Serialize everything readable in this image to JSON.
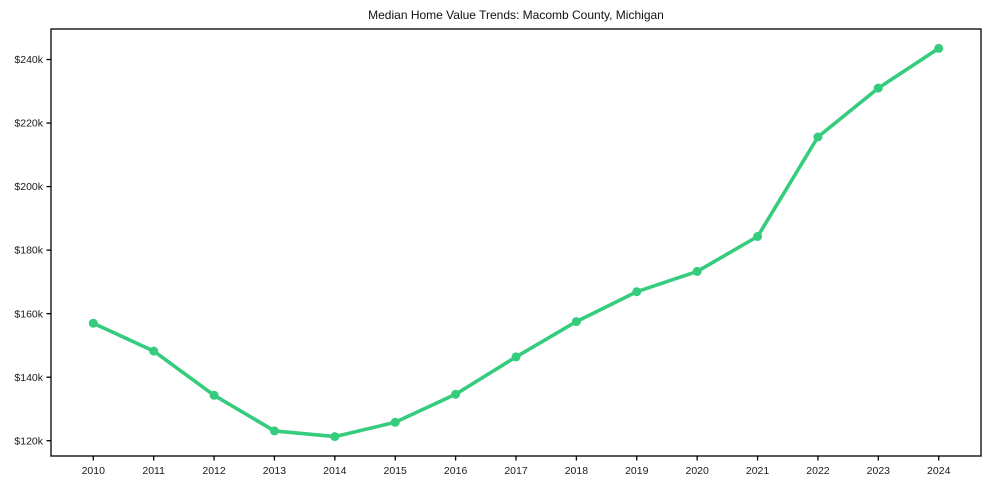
{
  "page": {
    "background_color": "#ffffff"
  },
  "chart_data": {
    "type": "line",
    "title": "Median Home Value Trends: Macomb County, Michigan",
    "xlabel": "",
    "ylabel": "",
    "x": [
      2010,
      2011,
      2012,
      2013,
      2014,
      2015,
      2016,
      2017,
      2018,
      2019,
      2020,
      2021,
      2022,
      2023,
      2024
    ],
    "series": [
      {
        "name": "Median Home Value",
        "color": "#35cd7d",
        "marker": "circle",
        "values": [
          157000,
          148200,
          134300,
          123100,
          121300,
          125800,
          134600,
          146400,
          157500,
          166900,
          173300,
          184300,
          215600,
          231000,
          243500
        ]
      }
    ],
    "xticks": [
      {
        "value": 2010,
        "label": "2010"
      },
      {
        "value": 2011,
        "label": "2011"
      },
      {
        "value": 2012,
        "label": "2012"
      },
      {
        "value": 2013,
        "label": "2013"
      },
      {
        "value": 2014,
        "label": "2014"
      },
      {
        "value": 2015,
        "label": "2015"
      },
      {
        "value": 2016,
        "label": "2016"
      },
      {
        "value": 2017,
        "label": "2017"
      },
      {
        "value": 2018,
        "label": "2018"
      },
      {
        "value": 2019,
        "label": "2019"
      },
      {
        "value": 2020,
        "label": "2020"
      },
      {
        "value": 2021,
        "label": "2021"
      },
      {
        "value": 2022,
        "label": "2022"
      },
      {
        "value": 2023,
        "label": "2023"
      },
      {
        "value": 2024,
        "label": "2024"
      }
    ],
    "yticks": [
      {
        "value": 120000,
        "label": "$120k"
      },
      {
        "value": 140000,
        "label": "$140k"
      },
      {
        "value": 160000,
        "label": "$160k"
      },
      {
        "value": 180000,
        "label": "$180k"
      },
      {
        "value": 200000,
        "label": "$200k"
      },
      {
        "value": 220000,
        "label": "$220k"
      },
      {
        "value": 240000,
        "label": "$240k"
      }
    ],
    "xlim": [
      2009.3,
      2024.7
    ],
    "ylim": [
      115190,
      249610
    ],
    "grid": false,
    "legend": "none",
    "spine_color": "#000000",
    "tick_color": "#000000",
    "label_color": "#1a1a1a",
    "line_width": 3.6,
    "marker_radius": 4.5
  }
}
